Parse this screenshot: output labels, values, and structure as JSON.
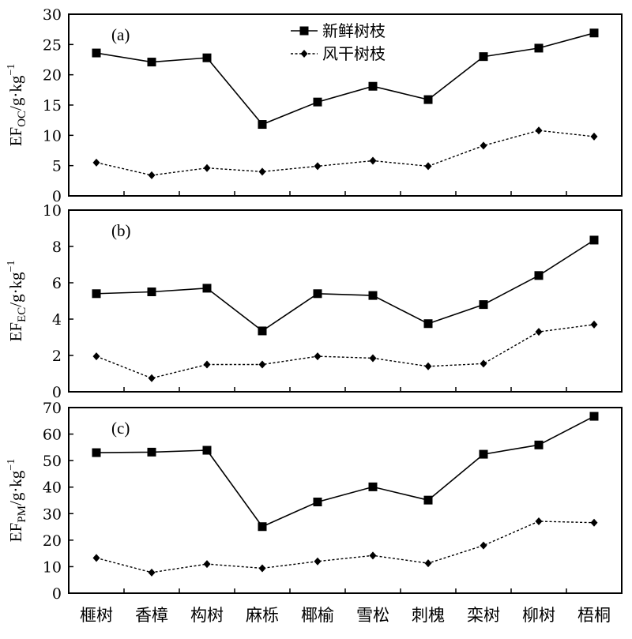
{
  "categories": [
    "榧树",
    "香樟",
    "构树",
    "麻栎",
    "椰榆",
    "雪松",
    "刺槐",
    "栾树",
    "柳树",
    "梧桐"
  ],
  "legend": {
    "fresh_label": "新鲜树枝",
    "dry_label": "风干树枝"
  },
  "chart_data": [
    {
      "type": "line",
      "panel_label": "(a)",
      "ylabel": {
        "main": "EF",
        "sub": "OC",
        "unit": "/g·kg",
        "sup": "−1"
      },
      "ylim": [
        0,
        30
      ],
      "yticks": [
        0,
        5,
        10,
        15,
        20,
        25,
        30
      ],
      "categories": [
        "榧树",
        "香樟",
        "构树",
        "麻栎",
        "椰榆",
        "雪松",
        "刺槐",
        "栾树",
        "柳树",
        "梧桐"
      ],
      "series": [
        {
          "name": "新鲜树枝",
          "values": [
            23.6,
            22.1,
            22.8,
            11.8,
            15.5,
            18.1,
            15.9,
            23.0,
            24.4,
            26.9
          ]
        },
        {
          "name": "风干树枝",
          "values": [
            5.5,
            3.4,
            4.6,
            4.0,
            4.9,
            5.8,
            4.9,
            8.3,
            10.8,
            9.8
          ]
        }
      ]
    },
    {
      "type": "line",
      "panel_label": "(b)",
      "ylabel": {
        "main": "EF",
        "sub": "EC",
        "unit": "/g·kg",
        "sup": "−1"
      },
      "ylim": [
        0,
        10
      ],
      "yticks": [
        0,
        2,
        4,
        6,
        8,
        10
      ],
      "categories": [
        "榧树",
        "香樟",
        "构树",
        "麻栎",
        "椰榆",
        "雪松",
        "刺槐",
        "栾树",
        "柳树",
        "梧桐"
      ],
      "series": [
        {
          "name": "新鲜树枝",
          "values": [
            5.4,
            5.5,
            5.7,
            3.35,
            5.4,
            5.3,
            3.75,
            4.8,
            6.4,
            8.35
          ]
        },
        {
          "name": "风干树枝",
          "values": [
            1.95,
            0.75,
            1.5,
            1.5,
            1.95,
            1.85,
            1.4,
            1.55,
            3.3,
            3.7
          ]
        }
      ]
    },
    {
      "type": "line",
      "panel_label": "(c)",
      "ylabel": {
        "main": "EF",
        "sub": "PM",
        "unit": "/g·kg",
        "sup": "−1"
      },
      "ylim": [
        0,
        70
      ],
      "yticks": [
        0,
        10,
        20,
        30,
        40,
        50,
        60,
        70
      ],
      "categories": [
        "榧树",
        "香樟",
        "构树",
        "麻栎",
        "椰榆",
        "雪松",
        "刺槐",
        "栾树",
        "柳树",
        "梧桐"
      ],
      "series": [
        {
          "name": "新鲜树枝",
          "values": [
            53.0,
            53.2,
            53.9,
            25.1,
            34.4,
            40.1,
            35.1,
            52.4,
            55.9,
            66.7
          ]
        },
        {
          "name": "风干树枝",
          "values": [
            13.3,
            7.8,
            11.0,
            9.4,
            12.0,
            14.2,
            11.3,
            18.0,
            27.1,
            26.6
          ]
        }
      ]
    }
  ]
}
